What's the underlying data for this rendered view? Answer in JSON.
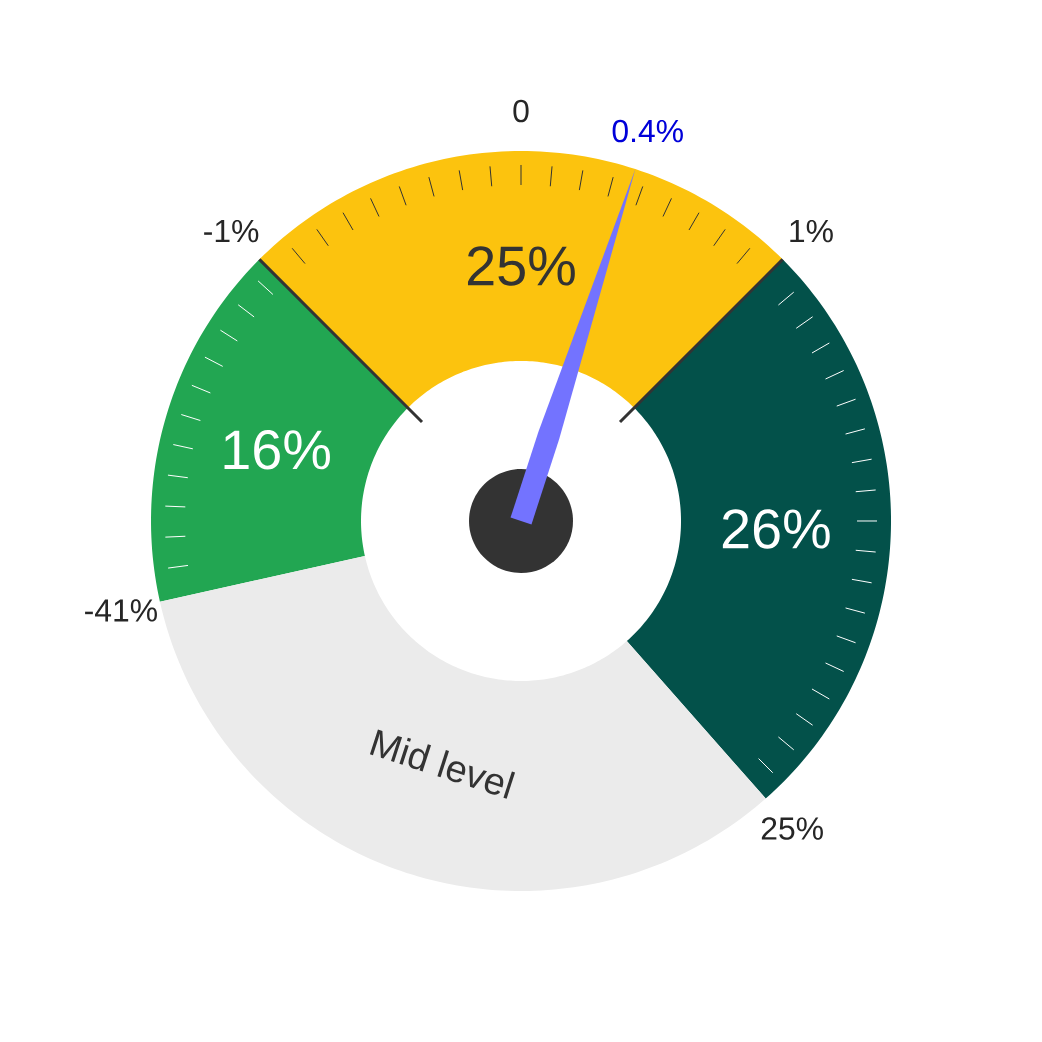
{
  "chart_data": {
    "type": "donut",
    "categories": [
      "16%",
      "25%",
      "26%",
      "Mid level"
    ],
    "values": [
      16,
      25,
      26,
      33
    ],
    "colors": [
      "#22a652",
      "#fcc30e",
      "#03514a",
      "#ebebeb"
    ],
    "needle": "25%",
    "annotations": [
      "-41%",
      "-1%",
      "0",
      "1%",
      "25%",
      "0.4%"
    ]
  }
}
